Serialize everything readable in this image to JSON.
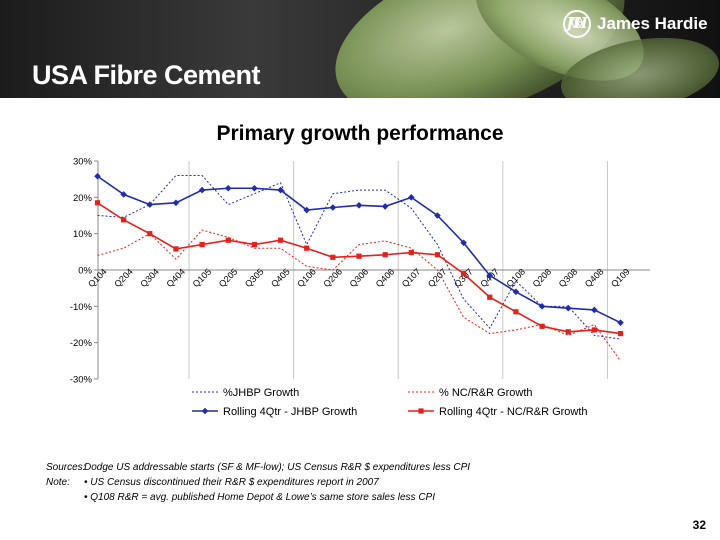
{
  "header": {
    "title": "USA Fibre Cement",
    "logo_text": "James Hardie",
    "logo_mark": "JH",
    "logo_registered": "®"
  },
  "chart_data": {
    "type": "line",
    "title": "Primary growth performance",
    "xlabel": "",
    "ylabel": "",
    "ylim": [
      -30,
      30
    ],
    "yticks": [
      -30,
      -20,
      -10,
      0,
      10,
      20,
      30
    ],
    "ytick_labels": [
      "-30%",
      "-20%",
      "-10%",
      "0%",
      "10%",
      "20%",
      "30%"
    ],
    "grid": "vertical lines at fiscal year boundaries",
    "legend_position": "bottom",
    "categories": [
      "Q104",
      "Q204",
      "Q304",
      "Q404",
      "Q105",
      "Q205",
      "Q305",
      "Q405",
      "Q106",
      "Q206",
      "Q306",
      "Q406",
      "Q107",
      "Q207",
      "Q307",
      "Q407",
      "Q108",
      "Q208",
      "Q308",
      "Q408",
      "Q109"
    ],
    "series": [
      {
        "name": "%JHBP Growth",
        "style": "dotted",
        "marker": "none",
        "color": "#1f2bb0",
        "values": [
          15,
          14.5,
          18,
          26,
          26,
          18,
          21,
          24,
          7,
          21,
          22,
          22,
          17,
          7,
          -8,
          -16,
          -3,
          -10,
          -10,
          -18,
          -19
        ]
      },
      {
        "name": "% NC/R&R Growth",
        "style": "dotted",
        "marker": "none",
        "color": "#e8201a",
        "values": [
          4,
          6,
          10,
          3,
          11,
          9,
          6,
          6,
          1,
          0,
          7,
          8,
          6,
          0,
          -13,
          -17.5,
          -16.5,
          -15,
          -18,
          -15,
          -25
        ]
      },
      {
        "name": "Rolling 4Qtr - JHBP Growth",
        "style": "solid",
        "marker": "diamond",
        "color": "#1f2bb0",
        "values": [
          25.8,
          20.8,
          18,
          18.5,
          22,
          22.5,
          22.5,
          22,
          16.5,
          17.2,
          17.8,
          17.5,
          20,
          15,
          7.5,
          -1.5,
          -6,
          -10,
          -10.5,
          -11,
          -14.5
        ]
      },
      {
        "name": "Rolling 4Qtr - NC/R&R Growth",
        "style": "solid",
        "marker": "square",
        "color": "#e8201a",
        "values": [
          18.5,
          13.8,
          10,
          5.8,
          7,
          8.2,
          7,
          8.2,
          6,
          3.5,
          3.8,
          4.2,
          4.8,
          4.2,
          -1,
          -7.5,
          -11.5,
          -15.5,
          -17,
          -16.5,
          -17.5
        ]
      }
    ]
  },
  "notes": {
    "sources_label": "Sources:",
    "sources_text": "Dodge US addressable starts (SF & MF-low); US Census R&R $ expenditures less CPI",
    "note_label": "Note:",
    "note_1": "•  US Census discontinued their R&R $ expenditures report in 2007",
    "note_2": "• Q108 R&R = avg. published Home Depot & Lowe’s same store sales less CPI"
  },
  "page_number": "32"
}
